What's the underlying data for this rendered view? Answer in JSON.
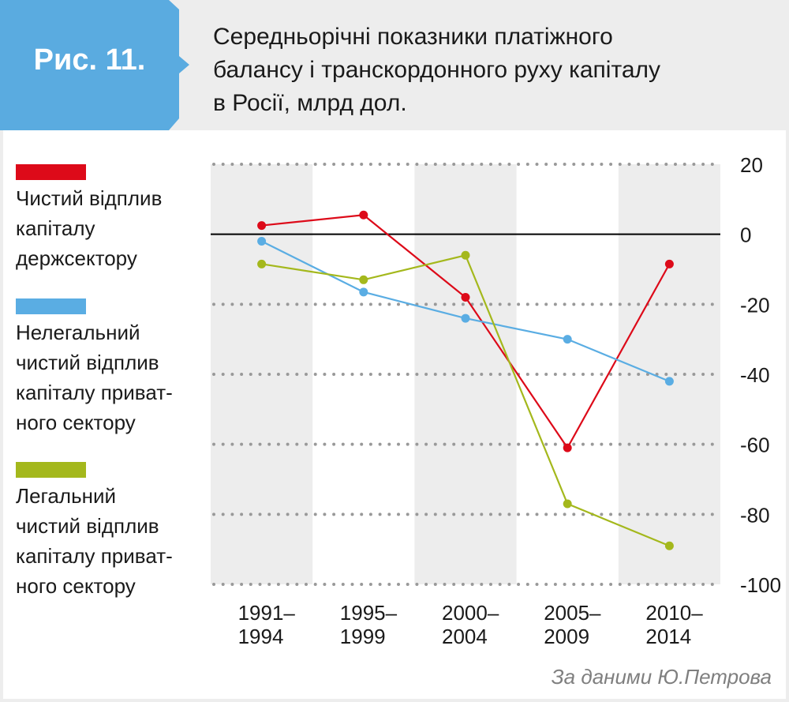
{
  "header": {
    "figure_label": "Рис. 11.",
    "title_lines": [
      "Середньорічні показники платіжного",
      "балансу і транскордонного руху капіталу",
      "в Росії, млрд дол."
    ]
  },
  "source": "За даними Ю.Петрова",
  "colors": {
    "badge": "#5aabe0",
    "red": "#dd0a19",
    "blue": "#5aade3",
    "green": "#a4b81c",
    "band": "#ededed",
    "grid_dot": "#999999"
  },
  "chart_data": {
    "type": "line",
    "title": "Середньорічні показники платіжного балансу і транскордонного руху капіталу в Росії, млрд дол.",
    "xlabel": "",
    "ylabel": "млрд дол.",
    "categories": [
      [
        "1991–",
        "1994"
      ],
      [
        "1995–",
        "1999"
      ],
      [
        "2000–",
        "2004"
      ],
      [
        "2005–",
        "2009"
      ],
      [
        "2010–",
        "2014"
      ]
    ],
    "ylim": [
      -100,
      20
    ],
    "yticks": [
      20,
      0,
      -20,
      -40,
      -60,
      -80,
      -100
    ],
    "ytick_labels": [
      "20",
      "0",
      "-20",
      "-40",
      "-60",
      "-80",
      "-100"
    ],
    "y_axis_side": "right",
    "grid": "dotted horizontal",
    "zero_line": true,
    "legend_position": "left",
    "series": [
      {
        "name": "Чистий відплив капіталу держсектору",
        "legend_lines": [
          "Чистий відплив",
          "капіталу",
          "держсектору"
        ],
        "color": "#dd0a19",
        "values": [
          2.5,
          5.5,
          -18,
          -61,
          -8.5
        ]
      },
      {
        "name": "Нелегальний чистий відплив капіталу приватного сектору",
        "legend_lines": [
          "Нелегальний",
          "чистий відплив",
          "капіталу приват-",
          "ного сектору"
        ],
        "color": "#5aade3",
        "values": [
          -2,
          -16.5,
          -24,
          -30,
          -42
        ]
      },
      {
        "name": "Легальний чистий відплив капіталу приватного сектору",
        "legend_lines": [
          "Легальний",
          "чистий відплив",
          "капіталу приват-",
          "ного сектору"
        ],
        "color": "#a4b81c",
        "values": [
          -8.5,
          -13,
          -6,
          -77,
          -89
        ]
      }
    ]
  }
}
